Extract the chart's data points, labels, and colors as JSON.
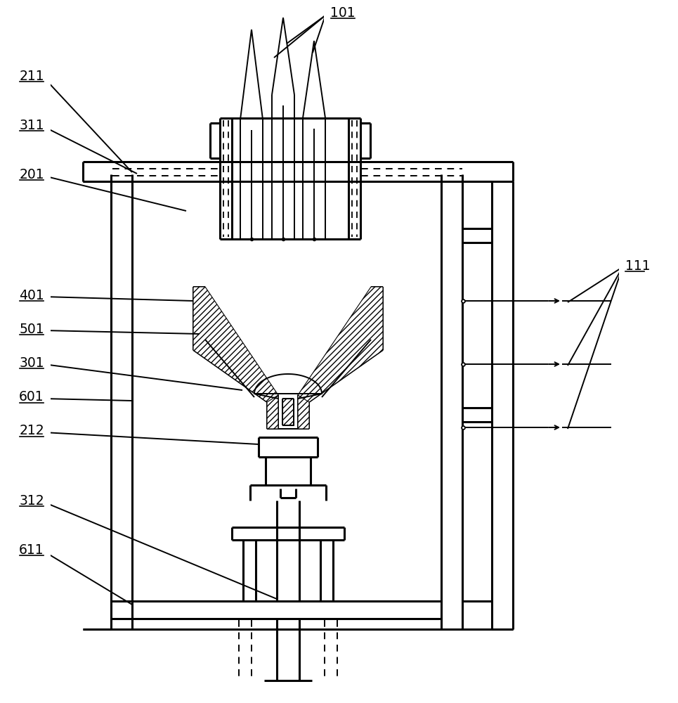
{
  "bg_color": "#ffffff",
  "lc": "#000000",
  "lw_main": 1.8,
  "lw_thin": 1.4,
  "lw_thick": 2.2,
  "fig_w": 9.65,
  "fig_h": 10.0,
  "dpi": 100,
  "labels": [
    "101",
    "211",
    "311",
    "201",
    "401",
    "501",
    "301",
    "601",
    "212",
    "312",
    "611",
    "111"
  ]
}
